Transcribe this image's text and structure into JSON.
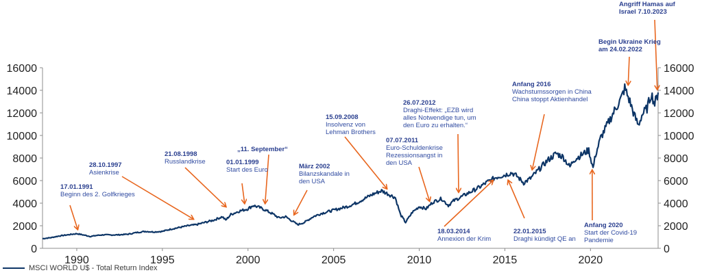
{
  "colors": {
    "series": "#0d3566",
    "arrow": "#e8661e",
    "annotation_date": "#2a3f8f",
    "annotation_text": "#2f4aa0",
    "axis": "#8c8c8c"
  },
  "chart_data": {
    "type": "line",
    "title": "",
    "xlabel": "",
    "ylabel": "",
    "xlim": [
      1988.0,
      2023.95
    ],
    "ylim": [
      0,
      16000
    ],
    "x_ticks": [
      "1990",
      "1995",
      "2000",
      "2005",
      "2010",
      "2015",
      "2020"
    ],
    "x_tick_values": [
      1990,
      1995,
      2000,
      2005,
      2010,
      2015,
      2020
    ],
    "y_ticks_left": [
      "0",
      "2000",
      "4000",
      "6000",
      "8000",
      "10000",
      "12000",
      "14000",
      "16000"
    ],
    "y_ticks_right": [
      "0",
      "2000",
      "4000",
      "6000",
      "8000",
      "10000",
      "12000",
      "14000",
      "16000"
    ],
    "y_tick_values": [
      0,
      2000,
      4000,
      6000,
      8000,
      10000,
      12000,
      14000,
      16000
    ],
    "grid": false,
    "legend_position": "bottom-left",
    "series": [
      {
        "name": "MSCI WORLD U$ - Total Return Index",
        "x": [
          1988.0,
          1988.5,
          1989.0,
          1989.5,
          1990.0,
          1990.4,
          1990.8,
          1991.2,
          1991.6,
          1992.0,
          1992.5,
          1993.0,
          1993.5,
          1994.0,
          1994.5,
          1995.0,
          1995.5,
          1996.0,
          1996.5,
          1997.0,
          1997.5,
          1998.0,
          1998.5,
          1998.7,
          1999.0,
          1999.5,
          2000.0,
          2000.3,
          2000.7,
          2001.0,
          2001.5,
          2001.8,
          2002.2,
          2002.6,
          2002.9,
          2003.3,
          2003.8,
          2004.3,
          2004.8,
          2005.3,
          2005.8,
          2006.3,
          2006.8,
          2007.3,
          2007.8,
          2008.2,
          2008.6,
          2008.9,
          2009.2,
          2009.6,
          2010.0,
          2010.4,
          2010.8,
          2011.3,
          2011.7,
          2012.0,
          2012.5,
          2013.0,
          2013.5,
          2014.0,
          2014.5,
          2015.0,
          2015.4,
          2015.7,
          2016.1,
          2016.5,
          2017.0,
          2017.5,
          2018.0,
          2018.4,
          2018.8,
          2019.0,
          2019.5,
          2019.9,
          2020.15,
          2020.3,
          2020.6,
          2021.0,
          2021.4,
          2021.8,
          2022.0,
          2022.3,
          2022.6,
          2022.8,
          2023.0,
          2023.3,
          2023.55,
          2023.75,
          2023.95
        ],
        "values": [
          850,
          950,
          1100,
          1200,
          1300,
          1180,
          1050,
          1150,
          1200,
          1180,
          1200,
          1250,
          1400,
          1500,
          1450,
          1500,
          1700,
          1850,
          2000,
          2100,
          2300,
          2500,
          2800,
          2500,
          3000,
          3300,
          3500,
          3800,
          3600,
          3400,
          3000,
          2700,
          2800,
          2400,
          2100,
          2300,
          2800,
          3100,
          3300,
          3500,
          3700,
          4000,
          4400,
          4800,
          5100,
          4800,
          4500,
          3000,
          2300,
          3200,
          3700,
          3500,
          4100,
          4400,
          3800,
          4200,
          4600,
          5000,
          5400,
          5900,
          6300,
          6500,
          6700,
          6400,
          5800,
          6200,
          7000,
          7800,
          8400,
          8100,
          7200,
          7800,
          8300,
          8700,
          7100,
          8300,
          9800,
          11000,
          12200,
          13300,
          14200,
          13000,
          11600,
          10900,
          11800,
          12400,
          13700,
          12800,
          13800
        ]
      }
    ],
    "annotations": [
      {
        "date": "17.01.1991",
        "text": [
          "Beginn des 2. Golfkrieges"
        ],
        "target_x": 1990.05,
        "target_y": 1700
      },
      {
        "date": "28.10.1997",
        "text": [
          "Asienkrise"
        ],
        "target_x": 1996.8,
        "target_y": 2600
      },
      {
        "date": "21.08.1998",
        "text": [
          "Russlandkrise"
        ],
        "target_x": 1998.7,
        "target_y": 3700
      },
      {
        "date": "01.01.1999",
        "text": [
          "Start des Euro"
        ],
        "target_x": 1999.8,
        "target_y": 4000
      },
      {
        "date": "„11. September“",
        "text": [],
        "target_x": 2001.0,
        "target_y": 4000
      },
      {
        "date": "März 2002",
        "text": [
          "Bilanzskandale in",
          "den USA"
        ],
        "target_x": 2002.7,
        "target_y": 3000
      },
      {
        "date": "15.09.2008",
        "text": [
          "Insolvenz von",
          "Lehman Brothers"
        ],
        "target_x": 2008.1,
        "target_y": 5300
      },
      {
        "date": "07.07.2011",
        "text": [
          "Euro-Schuldenkrise",
          "Rezessionsangst in",
          "den USA"
        ],
        "target_x": 2010.6,
        "target_y": 4200
      },
      {
        "date": "26.07.2012",
        "text": [
          "Draghi-Effekt: „EZB  wird",
          "alles Notwendige tun, um",
          "den Euro zu erhalten.“"
        ],
        "target_x": 2012.3,
        "target_y": 5000
      },
      {
        "date": "18.03.2014",
        "text": [
          "Annexion der Krim"
        ],
        "target_x": 2014.3,
        "target_y": 6000
      },
      {
        "date": "22.01.2015",
        "text": [
          "Draghi kündigt QE an"
        ],
        "target_x": 2015.2,
        "target_y": 6000
      },
      {
        "date": "Anfang 2016",
        "text": [
          "Wachstumssorgen in China",
          "China stoppt Aktienhandel"
        ],
        "target_x": 2016.6,
        "target_y": 7000
      },
      {
        "date": "Anfang 2020",
        "text": [
          "Start der Covid-19",
          "Pandemie"
        ],
        "target_x": 2020.1,
        "target_y": 6900
      },
      {
        "date": "Begin Ukraine Krieg",
        "text": [
          "am 24.02.2022"
        ],
        "target_x": 2022.2,
        "target_y": 14500
      },
      {
        "date": "Angriff Hamas auf",
        "text": [
          "Israel 7.10.2023"
        ],
        "target_x": 2023.9,
        "target_y": 14100
      }
    ]
  }
}
